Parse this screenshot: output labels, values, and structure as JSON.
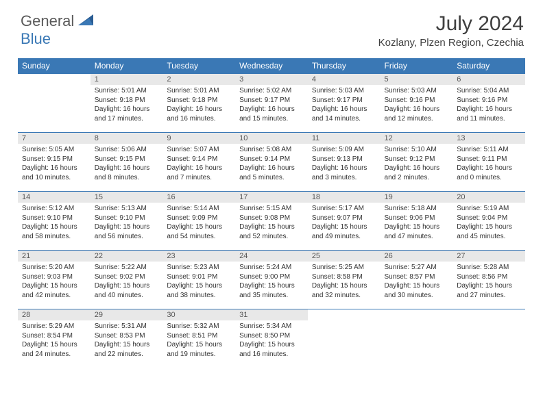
{
  "brand": {
    "part1": "General",
    "part2": "Blue"
  },
  "title": "July 2024",
  "location": "Kozlany, Plzen Region, Czechia",
  "weekdays": [
    "Sunday",
    "Monday",
    "Tuesday",
    "Wednesday",
    "Thursday",
    "Friday",
    "Saturday"
  ],
  "colors": {
    "header_bg": "#3a78b5",
    "header_text": "#ffffff",
    "daynum_bg": "#e8e8e8",
    "page_bg": "#ffffff",
    "body_text": "#333333",
    "logo_gray": "#5a5a5a",
    "logo_blue": "#3a78b5"
  },
  "structure_type": "calendar-table",
  "first_weekday_offset": 1,
  "days": [
    {
      "n": "1",
      "sr": "5:01 AM",
      "ss": "9:18 PM",
      "dl": "16 hours and 17 minutes."
    },
    {
      "n": "2",
      "sr": "5:01 AM",
      "ss": "9:18 PM",
      "dl": "16 hours and 16 minutes."
    },
    {
      "n": "3",
      "sr": "5:02 AM",
      "ss": "9:17 PM",
      "dl": "16 hours and 15 minutes."
    },
    {
      "n": "4",
      "sr": "5:03 AM",
      "ss": "9:17 PM",
      "dl": "16 hours and 14 minutes."
    },
    {
      "n": "5",
      "sr": "5:03 AM",
      "ss": "9:16 PM",
      "dl": "16 hours and 12 minutes."
    },
    {
      "n": "6",
      "sr": "5:04 AM",
      "ss": "9:16 PM",
      "dl": "16 hours and 11 minutes."
    },
    {
      "n": "7",
      "sr": "5:05 AM",
      "ss": "9:15 PM",
      "dl": "16 hours and 10 minutes."
    },
    {
      "n": "8",
      "sr": "5:06 AM",
      "ss": "9:15 PM",
      "dl": "16 hours and 8 minutes."
    },
    {
      "n": "9",
      "sr": "5:07 AM",
      "ss": "9:14 PM",
      "dl": "16 hours and 7 minutes."
    },
    {
      "n": "10",
      "sr": "5:08 AM",
      "ss": "9:14 PM",
      "dl": "16 hours and 5 minutes."
    },
    {
      "n": "11",
      "sr": "5:09 AM",
      "ss": "9:13 PM",
      "dl": "16 hours and 3 minutes."
    },
    {
      "n": "12",
      "sr": "5:10 AM",
      "ss": "9:12 PM",
      "dl": "16 hours and 2 minutes."
    },
    {
      "n": "13",
      "sr": "5:11 AM",
      "ss": "9:11 PM",
      "dl": "16 hours and 0 minutes."
    },
    {
      "n": "14",
      "sr": "5:12 AM",
      "ss": "9:10 PM",
      "dl": "15 hours and 58 minutes."
    },
    {
      "n": "15",
      "sr": "5:13 AM",
      "ss": "9:10 PM",
      "dl": "15 hours and 56 minutes."
    },
    {
      "n": "16",
      "sr": "5:14 AM",
      "ss": "9:09 PM",
      "dl": "15 hours and 54 minutes."
    },
    {
      "n": "17",
      "sr": "5:15 AM",
      "ss": "9:08 PM",
      "dl": "15 hours and 52 minutes."
    },
    {
      "n": "18",
      "sr": "5:17 AM",
      "ss": "9:07 PM",
      "dl": "15 hours and 49 minutes."
    },
    {
      "n": "19",
      "sr": "5:18 AM",
      "ss": "9:06 PM",
      "dl": "15 hours and 47 minutes."
    },
    {
      "n": "20",
      "sr": "5:19 AM",
      "ss": "9:04 PM",
      "dl": "15 hours and 45 minutes."
    },
    {
      "n": "21",
      "sr": "5:20 AM",
      "ss": "9:03 PM",
      "dl": "15 hours and 42 minutes."
    },
    {
      "n": "22",
      "sr": "5:22 AM",
      "ss": "9:02 PM",
      "dl": "15 hours and 40 minutes."
    },
    {
      "n": "23",
      "sr": "5:23 AM",
      "ss": "9:01 PM",
      "dl": "15 hours and 38 minutes."
    },
    {
      "n": "24",
      "sr": "5:24 AM",
      "ss": "9:00 PM",
      "dl": "15 hours and 35 minutes."
    },
    {
      "n": "25",
      "sr": "5:25 AM",
      "ss": "8:58 PM",
      "dl": "15 hours and 32 minutes."
    },
    {
      "n": "26",
      "sr": "5:27 AM",
      "ss": "8:57 PM",
      "dl": "15 hours and 30 minutes."
    },
    {
      "n": "27",
      "sr": "5:28 AM",
      "ss": "8:56 PM",
      "dl": "15 hours and 27 minutes."
    },
    {
      "n": "28",
      "sr": "5:29 AM",
      "ss": "8:54 PM",
      "dl": "15 hours and 24 minutes."
    },
    {
      "n": "29",
      "sr": "5:31 AM",
      "ss": "8:53 PM",
      "dl": "15 hours and 22 minutes."
    },
    {
      "n": "30",
      "sr": "5:32 AM",
      "ss": "8:51 PM",
      "dl": "15 hours and 19 minutes."
    },
    {
      "n": "31",
      "sr": "5:34 AM",
      "ss": "8:50 PM",
      "dl": "15 hours and 16 minutes."
    }
  ],
  "labels": {
    "sunrise": "Sunrise:",
    "sunset": "Sunset:",
    "daylight": "Daylight:"
  }
}
